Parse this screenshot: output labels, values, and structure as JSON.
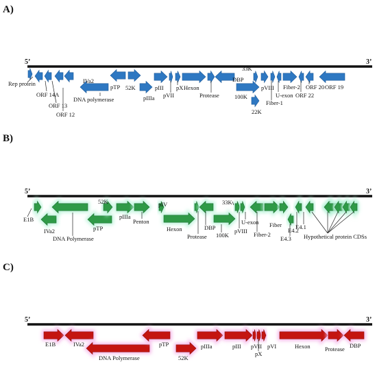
{
  "colors": {
    "panel_a": "#2e78c2",
    "panel_a_dark": "#1c5a99",
    "panel_b": "#2f9a47",
    "panel_b_dark": "#1d7030",
    "panel_b_glow": "#b9f3d9",
    "panel_c": "#c41510",
    "panel_c_dark": "#8e0c08",
    "panel_c_glow": "#f5b4e8",
    "genome_line": "#111111"
  },
  "panels": [
    {
      "id": "A",
      "label": "A)",
      "five_prime": "5’",
      "three_prime": "3’",
      "genes": [
        {
          "name": "Rep protein",
          "dir": "right"
        },
        {
          "name": "ORF 14A",
          "dir": "left"
        },
        {
          "name": "ORF 13",
          "dir": "left"
        },
        {
          "name": "ORF 12",
          "dir": "left"
        },
        {
          "name": "IVa2",
          "dir": "left"
        },
        {
          "name": "DNA polymerase",
          "dir": "left"
        },
        {
          "name": "pTP",
          "dir": "left"
        },
        {
          "name": "52K",
          "dir": "right"
        },
        {
          "name": "pIIIa",
          "dir": "right"
        },
        {
          "name": "pIII",
          "dir": "right"
        },
        {
          "name": "pVII",
          "dir": "right"
        },
        {
          "name": "pX",
          "dir": "right"
        },
        {
          "name": "Hexon",
          "dir": "right"
        },
        {
          "name": "Protease",
          "dir": "right"
        },
        {
          "name": "DBP",
          "dir": "left"
        },
        {
          "name": "100K",
          "dir": "right"
        },
        {
          "name": "33K",
          "dir": "right"
        },
        {
          "name": "22K",
          "dir": "right"
        },
        {
          "name": "pVIII",
          "dir": "right"
        },
        {
          "name": "Fiber-1",
          "dir": "right"
        },
        {
          "name": "U-exon",
          "dir": "left"
        },
        {
          "name": "Fiber-2",
          "dir": "right"
        },
        {
          "name": "ORF 22",
          "dir": "left"
        },
        {
          "name": "ORF 20",
          "dir": "left"
        },
        {
          "name": "ORF 19",
          "dir": "left"
        }
      ]
    },
    {
      "id": "B",
      "label": "B)",
      "five_prime": "5’",
      "three_prime": "3’",
      "genes": [
        {
          "name": "E1B",
          "dir": "right"
        },
        {
          "name": "IVa2",
          "dir": "left"
        },
        {
          "name": "DNA Polymerase",
          "dir": "left"
        },
        {
          "name": "pTP",
          "dir": "left"
        },
        {
          "name": "52K",
          "dir": "right"
        },
        {
          "name": "pIIIa",
          "dir": "right"
        },
        {
          "name": "Penton",
          "dir": "right"
        },
        {
          "name": "pIV",
          "dir": "right"
        },
        {
          "name": "Hexon",
          "dir": "right"
        },
        {
          "name": "Protease",
          "dir": "right"
        },
        {
          "name": "DBP",
          "dir": "left"
        },
        {
          "name": "100K",
          "dir": "right"
        },
        {
          "name": "33K",
          "dir": "right"
        },
        {
          "name": "pVIII",
          "dir": "right"
        },
        {
          "name": "U-exon",
          "dir": "left"
        },
        {
          "name": "Fiber-2",
          "dir": "right"
        },
        {
          "name": "Fiber",
          "dir": "right"
        },
        {
          "name": "E4.3",
          "dir": "left"
        },
        {
          "name": "E4.2",
          "dir": "left"
        },
        {
          "name": "E4.1",
          "dir": "left"
        },
        {
          "name": "Hypothetical protein CDSs",
          "dir": "left"
        }
      ]
    },
    {
      "id": "C",
      "label": "C)",
      "five_prime": "5’",
      "three_prime": "3’",
      "genes": [
        {
          "name": "E1B",
          "dir": "right"
        },
        {
          "name": "IVa2",
          "dir": "left"
        },
        {
          "name": "DNA Polymerase",
          "dir": "left"
        },
        {
          "name": "pTP",
          "dir": "left"
        },
        {
          "name": "52K",
          "dir": "right"
        },
        {
          "name": "pIIIa",
          "dir": "right"
        },
        {
          "name": "pIII",
          "dir": "right"
        },
        {
          "name": "pVII",
          "dir": "right"
        },
        {
          "name": "pX",
          "dir": "right"
        },
        {
          "name": "pVI",
          "dir": "right"
        },
        {
          "name": "Hexon",
          "dir": "right"
        },
        {
          "name": "Protease",
          "dir": "right"
        },
        {
          "name": "DBP",
          "dir": "left"
        }
      ]
    }
  ]
}
